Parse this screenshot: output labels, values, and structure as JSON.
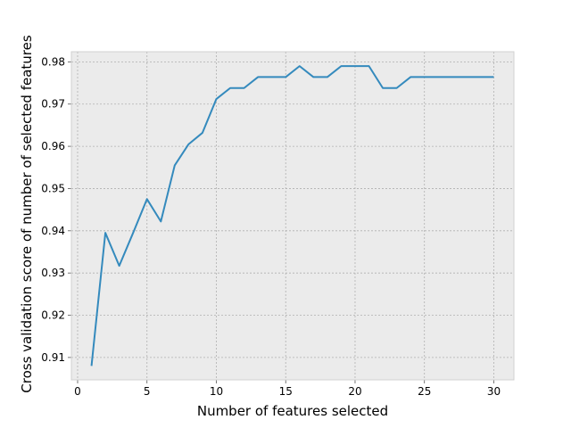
{
  "chart_data": {
    "type": "line",
    "title": "",
    "xlabel": "Number of features selected",
    "ylabel": "Cross validation score of number of selected features",
    "xlim": [
      -0.45,
      31.45
    ],
    "ylim": [
      0.9047,
      0.9824
    ],
    "xticks": [
      0,
      5,
      10,
      15,
      20,
      25,
      30
    ],
    "yticks": [
      0.91,
      0.92,
      0.93,
      0.94,
      0.95,
      0.96,
      0.97,
      0.98
    ],
    "ytick_labels": [
      "0.91",
      "0.92",
      "0.93",
      "0.94",
      "0.95",
      "0.96",
      "0.97",
      "0.98"
    ],
    "grid": true,
    "background_color": "#EBEBEB",
    "series": [
      {
        "color": "#348ABD",
        "x": [
          1,
          2,
          3,
          4,
          5,
          6,
          7,
          8,
          9,
          10,
          11,
          12,
          13,
          14,
          15,
          16,
          17,
          18,
          19,
          20,
          21,
          22,
          23,
          24,
          25,
          26,
          27,
          28,
          29,
          30
        ],
        "y": [
          0.908,
          0.9395,
          0.9317,
          0.9395,
          0.9475,
          0.9422,
          0.9555,
          0.9605,
          0.9632,
          0.9712,
          0.9738,
          0.9738,
          0.9764,
          0.9764,
          0.9764,
          0.979,
          0.9764,
          0.9764,
          0.979,
          0.979,
          0.979,
          0.9738,
          0.9738,
          0.9764,
          0.9764,
          0.9764,
          0.9764,
          0.9764,
          0.9764,
          0.9764
        ]
      }
    ]
  }
}
